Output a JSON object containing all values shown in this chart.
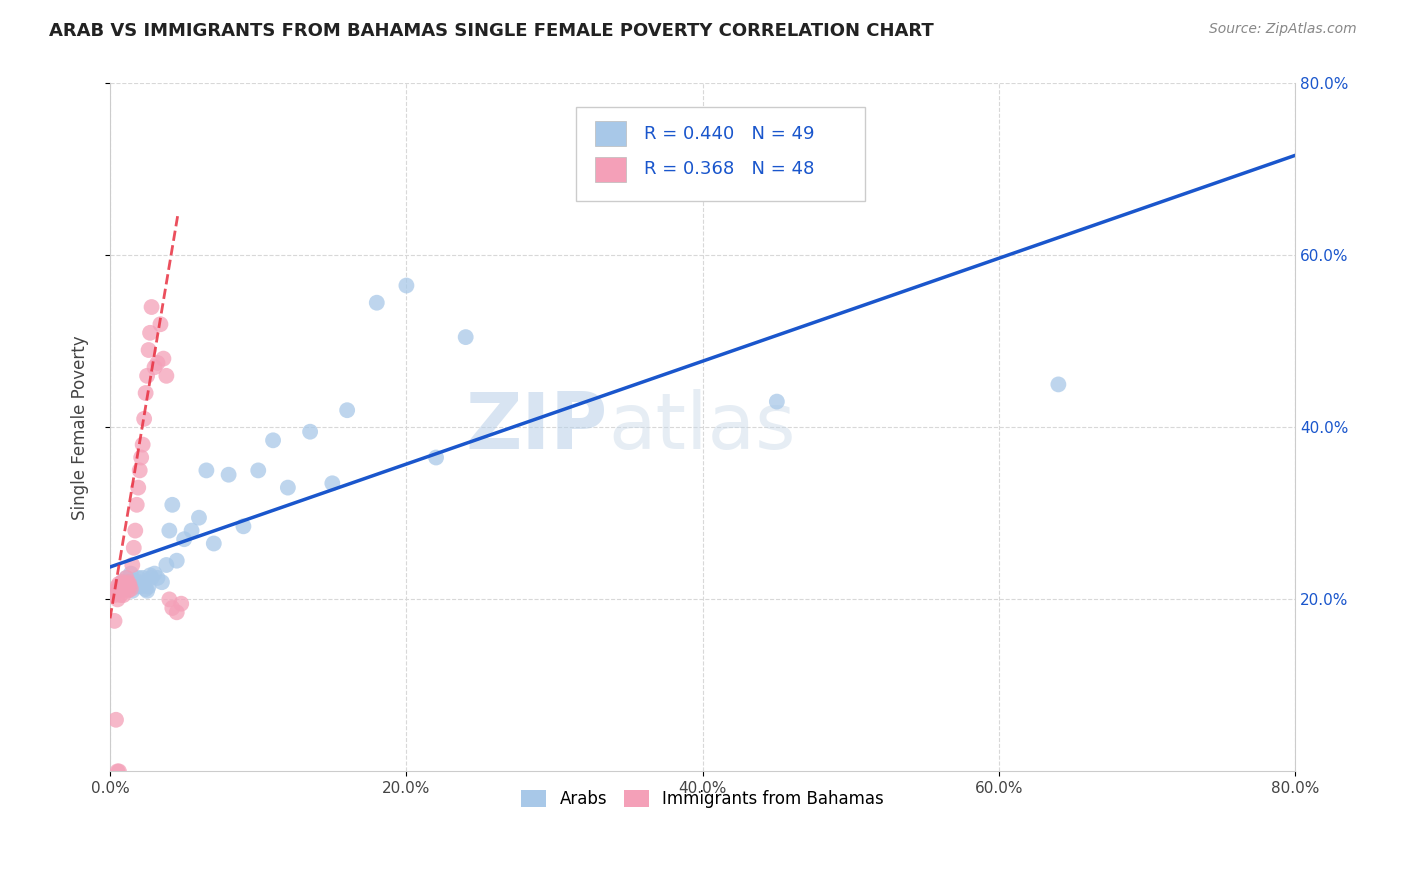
{
  "title": "ARAB VS IMMIGRANTS FROM BAHAMAS SINGLE FEMALE POVERTY CORRELATION CHART",
  "source": "Source: ZipAtlas.com",
  "ylabel": "Single Female Poverty",
  "xlim": [
    0.0,
    0.8
  ],
  "ylim": [
    0.0,
    0.8
  ],
  "xtick_labels": [
    "0.0%",
    "",
    "20.0%",
    "",
    "40.0%",
    "",
    "60.0%",
    "",
    "80.0%"
  ],
  "xtick_vals": [
    0.0,
    0.1,
    0.2,
    0.3,
    0.4,
    0.5,
    0.6,
    0.7,
    0.8
  ],
  "ytick_vals": [
    0.2,
    0.4,
    0.6,
    0.8
  ],
  "ytick_labels": [
    "20.0%",
    "40.0%",
    "60.0%",
    "80.0%"
  ],
  "arab_color": "#a8c8e8",
  "bahamas_color": "#f4a0b8",
  "arab_line_color": "#1a56cc",
  "bahamas_line_color": "#e83040",
  "grid_color": "#d8d8d8",
  "watermark_zip": "ZIP",
  "watermark_atlas": "atlas",
  "watermark_color": "#c5d8ec",
  "arab_R": "R = 0.440",
  "arab_N": "N = 49",
  "bahamas_R": "R = 0.368",
  "bahamas_N": "N = 48",
  "arab_scatter_x": [
    0.005,
    0.007,
    0.008,
    0.01,
    0.01,
    0.011,
    0.012,
    0.013,
    0.014,
    0.015,
    0.016,
    0.017,
    0.018,
    0.019,
    0.02,
    0.021,
    0.022,
    0.023,
    0.024,
    0.025,
    0.026,
    0.027,
    0.028,
    0.03,
    0.032,
    0.035,
    0.038,
    0.04,
    0.042,
    0.045,
    0.05,
    0.055,
    0.06,
    0.065,
    0.07,
    0.08,
    0.09,
    0.1,
    0.11,
    0.12,
    0.135,
    0.15,
    0.16,
    0.18,
    0.2,
    0.22,
    0.24,
    0.45,
    0.64
  ],
  "arab_scatter_y": [
    0.21,
    0.215,
    0.22,
    0.218,
    0.212,
    0.225,
    0.215,
    0.22,
    0.23,
    0.21,
    0.222,
    0.218,
    0.215,
    0.225,
    0.22,
    0.215,
    0.225,
    0.218,
    0.212,
    0.21,
    0.215,
    0.228,
    0.225,
    0.23,
    0.225,
    0.22,
    0.24,
    0.28,
    0.31,
    0.245,
    0.27,
    0.28,
    0.295,
    0.35,
    0.265,
    0.345,
    0.285,
    0.35,
    0.385,
    0.33,
    0.395,
    0.335,
    0.42,
    0.545,
    0.565,
    0.365,
    0.505,
    0.43,
    0.45
  ],
  "bahamas_scatter_x": [
    0.003,
    0.004,
    0.005,
    0.005,
    0.006,
    0.006,
    0.007,
    0.007,
    0.008,
    0.008,
    0.009,
    0.009,
    0.01,
    0.01,
    0.011,
    0.011,
    0.012,
    0.012,
    0.013,
    0.013,
    0.014,
    0.015,
    0.016,
    0.017,
    0.018,
    0.019,
    0.02,
    0.021,
    0.022,
    0.023,
    0.024,
    0.025,
    0.026,
    0.027,
    0.028,
    0.03,
    0.032,
    0.034,
    0.036,
    0.038,
    0.04,
    0.042,
    0.045,
    0.048,
    0.003,
    0.004,
    0.005,
    0.006
  ],
  "bahamas_scatter_y": [
    0.205,
    0.21,
    0.215,
    0.2,
    0.218,
    0.21,
    0.215,
    0.205,
    0.22,
    0.21,
    0.215,
    0.205,
    0.218,
    0.212,
    0.225,
    0.215,
    0.22,
    0.21,
    0.218,
    0.215,
    0.212,
    0.24,
    0.26,
    0.28,
    0.31,
    0.33,
    0.35,
    0.365,
    0.38,
    0.41,
    0.44,
    0.46,
    0.49,
    0.51,
    0.54,
    0.47,
    0.475,
    0.52,
    0.48,
    0.46,
    0.2,
    0.19,
    0.185,
    0.195,
    0.175,
    0.06,
    0.0,
    0.0
  ],
  "bahamas_line_x": [
    0.0,
    0.046
  ],
  "bahamas_line_y": [
    0.178,
    0.65
  ]
}
